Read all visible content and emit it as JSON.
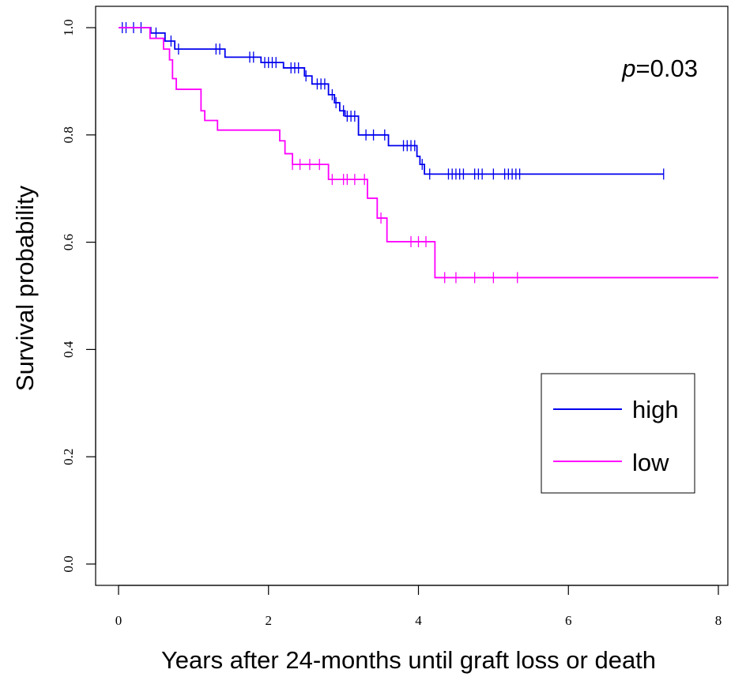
{
  "chart_data": {
    "type": "line",
    "subtype": "kaplan-meier step",
    "xlabel": "Years after 24-months until graft loss or death",
    "ylabel": "Survival probability",
    "xlim": [
      0,
      8
    ],
    "ylim": [
      0,
      1
    ],
    "x_ticks": [
      "0",
      "2",
      "4",
      "6",
      "8"
    ],
    "y_ticks": [
      "0.0",
      "0.2",
      "0.4",
      "0.6",
      "0.8",
      "1.0"
    ],
    "grid": false,
    "legend_position": "bottom-right",
    "annotation": {
      "italic": "p",
      "rest": "=0.03"
    },
    "series": [
      {
        "name": "high",
        "color": "#0000ee",
        "steps": [
          [
            0,
            1.0
          ],
          [
            0.43,
            0.99
          ],
          [
            0.62,
            0.975
          ],
          [
            0.75,
            0.96
          ],
          [
            1.42,
            0.945
          ],
          [
            1.9,
            0.935
          ],
          [
            2.2,
            0.925
          ],
          [
            2.48,
            0.91
          ],
          [
            2.58,
            0.895
          ],
          [
            2.8,
            0.875
          ],
          [
            2.88,
            0.86
          ],
          [
            2.95,
            0.845
          ],
          [
            3.02,
            0.835
          ],
          [
            3.2,
            0.8
          ],
          [
            3.6,
            0.78
          ],
          [
            3.98,
            0.76
          ],
          [
            4.02,
            0.745
          ],
          [
            4.08,
            0.727
          ],
          [
            7.27,
            0.727
          ]
        ],
        "censor_x": [
          0.05,
          0.1,
          0.2,
          0.3,
          0.5,
          0.7,
          0.8,
          1.3,
          1.35,
          1.75,
          1.8,
          1.95,
          2.0,
          2.05,
          2.1,
          2.3,
          2.35,
          2.4,
          2.5,
          2.65,
          2.7,
          2.75,
          2.85,
          2.9,
          3.0,
          3.05,
          3.1,
          3.15,
          3.3,
          3.4,
          3.55,
          3.8,
          3.85,
          3.9,
          3.95,
          4.05,
          4.15,
          4.4,
          4.45,
          4.5,
          4.55,
          4.6,
          4.75,
          4.8,
          4.85,
          5.0,
          5.15,
          5.2,
          5.25,
          5.3,
          5.35,
          7.27
        ]
      },
      {
        "name": "low",
        "color": "#ff00ff",
        "steps": [
          [
            0,
            1.0
          ],
          [
            0.42,
            0.98
          ],
          [
            0.6,
            0.96
          ],
          [
            0.68,
            0.94
          ],
          [
            0.72,
            0.905
          ],
          [
            0.77,
            0.885
          ],
          [
            1.1,
            0.845
          ],
          [
            1.15,
            0.827
          ],
          [
            1.32,
            0.809
          ],
          [
            2.15,
            0.789
          ],
          [
            2.22,
            0.765
          ],
          [
            2.32,
            0.745
          ],
          [
            2.8,
            0.717
          ],
          [
            3.32,
            0.682
          ],
          [
            3.45,
            0.645
          ],
          [
            3.58,
            0.601
          ],
          [
            4.22,
            0.534
          ],
          [
            8.0,
            0.534
          ]
        ],
        "censor_x": [
          2.32,
          2.42,
          2.55,
          2.68,
          2.85,
          3.0,
          3.05,
          3.15,
          3.28,
          3.5,
          3.9,
          4.0,
          4.1,
          4.35,
          4.5,
          4.75,
          5.0,
          5.32
        ]
      }
    ]
  }
}
